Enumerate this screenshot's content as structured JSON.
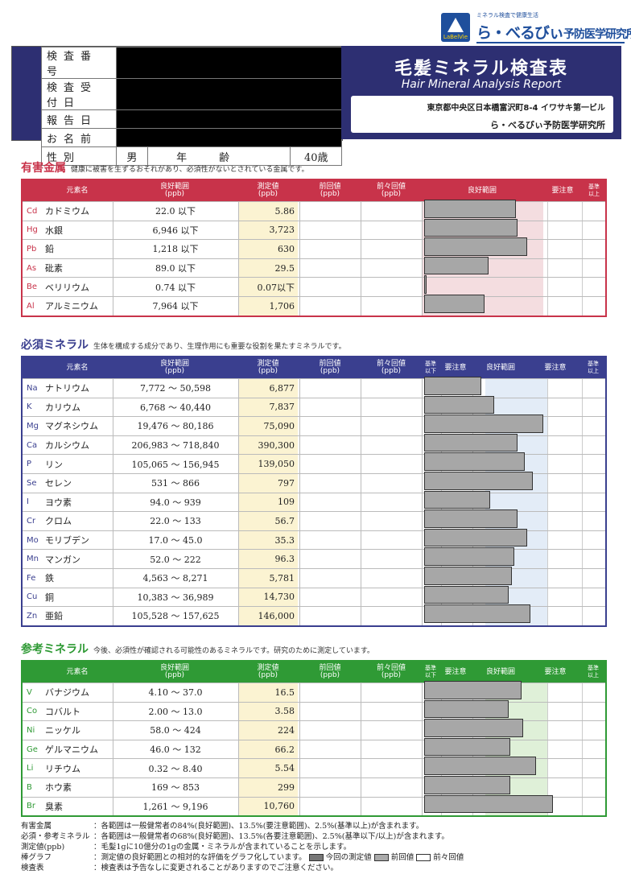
{
  "logo": {
    "tagline": "ミネラル検査で健康生活",
    "name_a": "ら・べるびぃ",
    "name_b": "予防医学研究所",
    "mark_text": "LaBelVie"
  },
  "header": {
    "labels": [
      "検査番号",
      "検査受付日",
      "報告日",
      "お名前"
    ],
    "sex_label": "性別",
    "sex_value": "男",
    "age_label": "年齢",
    "age_value": "40歳"
  },
  "banner": {
    "title": "毛髪ミネラル検査表",
    "subtitle": "Hair Mineral Analysis Report",
    "address": "東京都中央区日本橋富沢町8-4 イワサキ第一ビル",
    "org": "ら・べるびぃ予防医学研究所"
  },
  "colors": {
    "harmful": "#c8334a",
    "essential": "#3a3f8f",
    "reference": "#2f9a35"
  },
  "sections": [
    {
      "id": "harmful",
      "title": "有害金属",
      "desc": "健康に被害を生ずるおそれがあり、必須性がないとされている金属です。",
      "headers": {
        "name": "元素名",
        "range": "良好範囲\n(ppb)",
        "meas": "測定値\n(ppb)",
        "prev": "前回値\n(ppb)",
        "prev2": "前々回値\n(ppb)",
        "g1": "良好範囲",
        "g2": "要注意",
        "g3": "基準\n以上"
      },
      "rows": [
        {
          "sym": "Cd",
          "name": "カドミウム",
          "range": "22.0 以下",
          "meas": "5.86",
          "bar": 0.5
        },
        {
          "sym": "Hg",
          "name": "水銀",
          "range": "6,946 以下",
          "meas": "3,723",
          "bar": 0.51
        },
        {
          "sym": "Pb",
          "name": "鉛",
          "range": "1,218 以下",
          "meas": "630",
          "bar": 0.56
        },
        {
          "sym": "As",
          "name": "砒素",
          "range": "89.0 以下",
          "meas": "29.5",
          "bar": 0.35
        },
        {
          "sym": "Be",
          "name": "ベリリウム",
          "range": "0.74 以下",
          "meas": "0.07以下",
          "bar": 0.01
        },
        {
          "sym": "Al",
          "name": "アルミニウム",
          "range": "7,964 以下",
          "meas": "1,706",
          "bar": 0.33
        }
      ]
    },
    {
      "id": "essential",
      "title": "必須ミネラル",
      "desc": "生体を構成する成分であり、生理作用にも重要な役割を果たすミネラルです。",
      "headers": {
        "name": "元素名",
        "range": "良好範囲\n(ppb)",
        "meas": "測定値\n(ppb)",
        "prev": "前回値\n(ppb)",
        "prev2": "前々回値\n(ppb)",
        "g0": "基準\n以下",
        "g1": "要注意",
        "g2": "良好範囲",
        "g3": "要注意",
        "g4": "基準\n以上"
      },
      "rows": [
        {
          "sym": "Na",
          "name": "ナトリウム",
          "range": "7,772 〜 50,598",
          "meas": "6,877",
          "bar": 0.31
        },
        {
          "sym": "K",
          "name": "カリウム",
          "range": "6,768 〜 40,440",
          "meas": "7,837",
          "bar": 0.38
        },
        {
          "sym": "Mg",
          "name": "マグネシウム",
          "range": "19,476 〜 80,186",
          "meas": "75,090",
          "bar": 0.65
        },
        {
          "sym": "Ca",
          "name": "カルシウム",
          "range": "206,983 〜 718,840",
          "meas": "390,300",
          "bar": 0.51
        },
        {
          "sym": "P",
          "name": "リン",
          "range": "105,065 〜 156,945",
          "meas": "139,050",
          "bar": 0.55
        },
        {
          "sym": "Se",
          "name": "セレン",
          "range": "531 〜 866",
          "meas": "797",
          "bar": 0.59
        },
        {
          "sym": "I",
          "name": "ヨウ素",
          "range": "94.0 〜 939",
          "meas": "109",
          "bar": 0.36
        },
        {
          "sym": "Cr",
          "name": "クロム",
          "range": "22.0 〜 133",
          "meas": "56.7",
          "bar": 0.51
        },
        {
          "sym": "Mo",
          "name": "モリブデン",
          "range": "17.0 〜 45.0",
          "meas": "35.3",
          "bar": 0.56
        },
        {
          "sym": "Mn",
          "name": "マンガン",
          "range": "52.0 〜 222",
          "meas": "96.3",
          "bar": 0.49
        },
        {
          "sym": "Fe",
          "name": "鉄",
          "range": "4,563 〜 8,271",
          "meas": "5,781",
          "bar": 0.48
        },
        {
          "sym": "Cu",
          "name": "銅",
          "range": "10,383 〜 36,989",
          "meas": "14,730",
          "bar": 0.46
        },
        {
          "sym": "Zn",
          "name": "亜鉛",
          "range": "105,528 〜 157,625",
          "meas": "146,000",
          "bar": 0.58
        }
      ]
    },
    {
      "id": "reference",
      "title": "参考ミネラル",
      "desc": "今後、必須性が確認される可能性のあるミネラルです。研究のために測定しています。",
      "headers": {
        "name": "元素名",
        "range": "良好範囲\n(ppb)",
        "meas": "測定値\n(ppb)",
        "prev": "前回値\n(ppb)",
        "prev2": "前々回値\n(ppb)",
        "g0": "基準\n以下",
        "g1": "要注意",
        "g2": "良好範囲",
        "g3": "要注意",
        "g4": "基準\n以上"
      },
      "rows": [
        {
          "sym": "V",
          "name": "バナジウム",
          "range": "4.10 〜 37.0",
          "meas": "16.5",
          "bar": 0.53
        },
        {
          "sym": "Co",
          "name": "コバルト",
          "range": "2.00 〜 13.0",
          "meas": "3.58",
          "bar": 0.46
        },
        {
          "sym": "Ni",
          "name": "ニッケル",
          "range": "58.0 〜 424",
          "meas": "224",
          "bar": 0.54
        },
        {
          "sym": "Ge",
          "name": "ゲルマニウム",
          "range": "46.0 〜 132",
          "meas": "66.2",
          "bar": 0.47
        },
        {
          "sym": "Li",
          "name": "リチウム",
          "range": "0.32 〜 8.40",
          "meas": "5.54",
          "bar": 0.61
        },
        {
          "sym": "B",
          "name": "ホウ素",
          "range": "169 〜 853",
          "meas": "299",
          "bar": 0.47
        },
        {
          "sym": "Br",
          "name": "臭素",
          "range": "1,261 〜 9,196",
          "meas": "10,760",
          "bar": 0.7
        }
      ]
    }
  ],
  "footer": [
    {
      "k": "有害金属",
      "v": "：各範囲は一般健常者の84%(良好範囲)、13.5%(要注意範囲)、2.5%(基準以上)が含まれます。"
    },
    {
      "k": "必須・参考ミネラル",
      "v": "：各範囲は一般健常者の68%(良好範囲)、13.5%(各要注意範囲)、2.5%(基準以下/以上)が含まれます。"
    },
    {
      "k": "測定値(ppb)",
      "v": "：毛髪1gに10億分の1gの金属・ミネラルが含まれていることを示します。"
    },
    {
      "k": "棒グラフ",
      "v": "：測定値の良好範囲との相対的な評価をグラフ化しています。",
      "legend": [
        "今回の測定値",
        "前回値",
        "前々回値"
      ]
    },
    {
      "k": "検査表",
      "v": "：検査表は予告なしに変更されることがありますのでご注意ください。"
    }
  ]
}
